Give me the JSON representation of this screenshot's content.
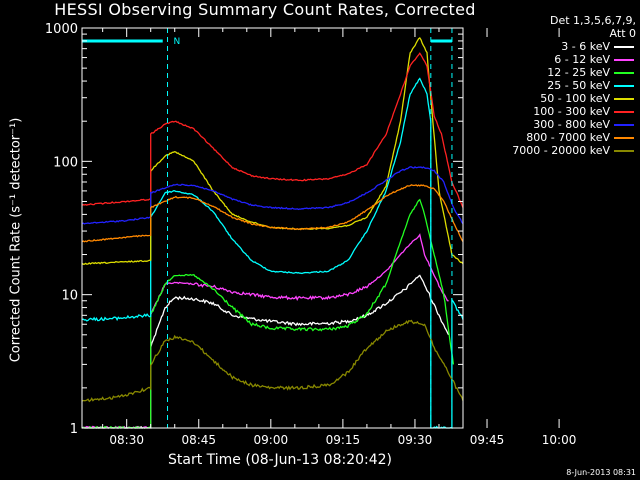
{
  "chart_data": {
    "type": "line",
    "title": "HESSI Observing Summary Count Rates, Corrected",
    "xlabel": "Start Time (08-Jun-13 08:20:42)",
    "ylabel": "Corrected Count Rate (s⁻¹ detector⁻¹)",
    "ylog": true,
    "ylim": [
      1,
      1000
    ],
    "xlim": [
      20.7,
      100
    ],
    "x_unit": "minutes after 08:00 UT",
    "x_ticks": [
      "08:30",
      "08:45",
      "09:00",
      "09:15",
      "09:30",
      "09:45",
      "10:00"
    ],
    "y_ticks": [
      "1",
      "10",
      "100",
      "1000"
    ],
    "legend_header": [
      "Det 1,3,5,6,7,9,",
      "Att 0"
    ],
    "legend_position": "right, outside plot",
    "markers": {
      "night_bar_label": "N",
      "night_bars": [
        [
          20.7,
          37.5
        ],
        [
          93.3,
          97.7
        ]
      ],
      "dashed_times": [
        38.5,
        93.3,
        97.7
      ]
    },
    "series": [
      {
        "name": "3 - 6 keV",
        "color": "#ffffff",
        "points": [
          [
            20.7,
            1
          ],
          [
            35,
            1
          ],
          [
            35,
            4
          ],
          [
            38,
            8
          ],
          [
            40,
            9.5
          ],
          [
            44,
            9.3
          ],
          [
            48,
            8.6
          ],
          [
            52,
            7
          ],
          [
            56,
            6.6
          ],
          [
            60,
            6.3
          ],
          [
            66,
            6
          ],
          [
            72,
            6.1
          ],
          [
            76,
            6.3
          ],
          [
            80,
            7
          ],
          [
            84,
            8.6
          ],
          [
            88,
            11
          ],
          [
            90,
            13
          ],
          [
            91,
            14
          ],
          [
            93,
            10
          ],
          [
            95,
            7
          ],
          [
            97,
            5
          ]
        ]
      },
      {
        "name": "6 - 12 keV",
        "color": "#ff44ff",
        "points": [
          [
            20.7,
            1
          ],
          [
            35,
            1
          ],
          [
            35,
            7
          ],
          [
            38,
            12
          ],
          [
            40,
            12.3
          ],
          [
            44,
            12
          ],
          [
            48,
            11.5
          ],
          [
            52,
            10.5
          ],
          [
            56,
            10
          ],
          [
            60,
            9.6
          ],
          [
            66,
            9.4
          ],
          [
            72,
            9.5
          ],
          [
            76,
            10
          ],
          [
            80,
            11.5
          ],
          [
            84,
            15
          ],
          [
            87,
            20
          ],
          [
            89,
            24
          ],
          [
            91,
            28
          ],
          [
            92,
            20
          ],
          [
            94,
            14
          ],
          [
            96,
            10
          ],
          [
            97,
            9
          ]
        ]
      },
      {
        "name": "12 - 25 keV",
        "color": "#22ff22",
        "points": [
          [
            20.7,
            1
          ],
          [
            35,
            1
          ],
          [
            35,
            7
          ],
          [
            38,
            12
          ],
          [
            40,
            14
          ],
          [
            44,
            14
          ],
          [
            48,
            11
          ],
          [
            52,
            8
          ],
          [
            56,
            6
          ],
          [
            60,
            5.6
          ],
          [
            66,
            5.5
          ],
          [
            72,
            5.5
          ],
          [
            76,
            5.8
          ],
          [
            80,
            7.2
          ],
          [
            84,
            12
          ],
          [
            87,
            25
          ],
          [
            89,
            40
          ],
          [
            91,
            52
          ],
          [
            92,
            40
          ],
          [
            94,
            20
          ],
          [
            96,
            10
          ],
          [
            98,
            3
          ]
        ]
      },
      {
        "name": "25 - 50 keV",
        "color": "#00ffff",
        "points": [
          [
            20.7,
            6.5
          ],
          [
            27,
            6.6
          ],
          [
            33,
            6.9
          ],
          [
            35,
            7
          ],
          [
            35,
            38
          ],
          [
            38,
            58
          ],
          [
            40,
            60
          ],
          [
            44,
            56
          ],
          [
            48,
            42
          ],
          [
            52,
            26
          ],
          [
            56,
            18
          ],
          [
            60,
            15
          ],
          [
            66,
            14.5
          ],
          [
            72,
            15
          ],
          [
            76,
            18
          ],
          [
            80,
            30
          ],
          [
            84,
            60
          ],
          [
            87,
            140
          ],
          [
            89,
            320
          ],
          [
            91,
            420
          ],
          [
            92.5,
            320
          ],
          [
            93.3,
            200
          ],
          [
            93.3,
            1
          ],
          [
            97.7,
            1
          ],
          [
            97.7,
            9
          ],
          [
            100,
            6.5
          ]
        ]
      },
      {
        "name": "50 - 100 keV",
        "color": "#dddd00",
        "points": [
          [
            20.7,
            17
          ],
          [
            35,
            18
          ],
          [
            35,
            85
          ],
          [
            38,
            110
          ],
          [
            40,
            118
          ],
          [
            44,
            100
          ],
          [
            48,
            60
          ],
          [
            52,
            40
          ],
          [
            56,
            35
          ],
          [
            60,
            32
          ],
          [
            66,
            31
          ],
          [
            72,
            31.5
          ],
          [
            76,
            33
          ],
          [
            80,
            38
          ],
          [
            84,
            65
          ],
          [
            87,
            200
          ],
          [
            89,
            650
          ],
          [
            91,
            850
          ],
          [
            92.5,
            650
          ],
          [
            93.3,
            300
          ],
          [
            95,
            60
          ],
          [
            97.7,
            20
          ],
          [
            100,
            17
          ]
        ]
      },
      {
        "name": "100 - 300 keV",
        "color": "#ff2222",
        "points": [
          [
            20.7,
            47
          ],
          [
            30,
            50
          ],
          [
            35,
            52
          ],
          [
            35,
            160
          ],
          [
            38,
            190
          ],
          [
            40,
            200
          ],
          [
            44,
            175
          ],
          [
            48,
            125
          ],
          [
            52,
            90
          ],
          [
            56,
            78
          ],
          [
            60,
            74
          ],
          [
            66,
            72
          ],
          [
            72,
            74
          ],
          [
            76,
            80
          ],
          [
            80,
            95
          ],
          [
            84,
            160
          ],
          [
            87,
            320
          ],
          [
            89,
            520
          ],
          [
            91,
            650
          ],
          [
            92.5,
            520
          ],
          [
            94,
            220
          ],
          [
            95.5,
            160
          ],
          [
            97.7,
            70
          ],
          [
            100,
            45
          ]
        ]
      },
      {
        "name": "300 - 800 keV",
        "color": "#2222ff",
        "points": [
          [
            20.7,
            34
          ],
          [
            30,
            36
          ],
          [
            35,
            38
          ],
          [
            35,
            58
          ],
          [
            38,
            63
          ],
          [
            40,
            67
          ],
          [
            44,
            66
          ],
          [
            48,
            60
          ],
          [
            52,
            52
          ],
          [
            56,
            47
          ],
          [
            60,
            45
          ],
          [
            66,
            44
          ],
          [
            72,
            45
          ],
          [
            76,
            49
          ],
          [
            80,
            58
          ],
          [
            84,
            72
          ],
          [
            87,
            85
          ],
          [
            89,
            90
          ],
          [
            92,
            90
          ],
          [
            94,
            85
          ],
          [
            96,
            70
          ],
          [
            98,
            45
          ],
          [
            100,
            34
          ]
        ]
      },
      {
        "name": "800 - 7000 keV",
        "color": "#ff8800",
        "points": [
          [
            20.7,
            25
          ],
          [
            30,
            27
          ],
          [
            35,
            28
          ],
          [
            35,
            45
          ],
          [
            38,
            50
          ],
          [
            40,
            54
          ],
          [
            44,
            53
          ],
          [
            48,
            46
          ],
          [
            52,
            38
          ],
          [
            56,
            34
          ],
          [
            60,
            32
          ],
          [
            66,
            31
          ],
          [
            72,
            32
          ],
          [
            76,
            35
          ],
          [
            80,
            43
          ],
          [
            84,
            55
          ],
          [
            87,
            62
          ],
          [
            89,
            66
          ],
          [
            92,
            66
          ],
          [
            94,
            62
          ],
          [
            96,
            50
          ],
          [
            98,
            35
          ],
          [
            100,
            25
          ]
        ]
      },
      {
        "name": "7000 - 20000 keV",
        "color": "#888800",
        "points": [
          [
            20.7,
            1.6
          ],
          [
            28,
            1.7
          ],
          [
            35,
            2
          ],
          [
            35,
            3
          ],
          [
            38,
            4.5
          ],
          [
            40,
            4.8
          ],
          [
            44,
            4.4
          ],
          [
            48,
            3.2
          ],
          [
            52,
            2.4
          ],
          [
            56,
            2.1
          ],
          [
            60,
            2
          ],
          [
            66,
            2
          ],
          [
            72,
            2.1
          ],
          [
            76,
            2.6
          ],
          [
            80,
            4
          ],
          [
            84,
            5.3
          ],
          [
            86,
            5.8
          ],
          [
            89,
            6.3
          ],
          [
            92,
            6
          ],
          [
            94,
            4
          ],
          [
            97,
            2.6
          ],
          [
            100,
            1.6
          ]
        ]
      }
    ]
  },
  "footer": {
    "stamp": "8-Jun-2013 08:31"
  }
}
